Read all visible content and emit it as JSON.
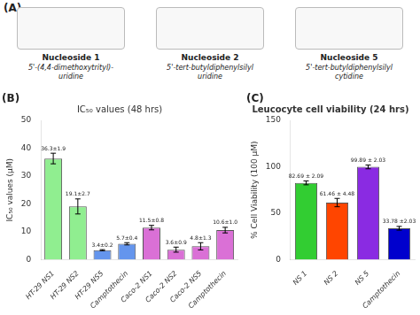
{
  "chart_data": [
    {
      "type": "text",
      "title": "(A)",
      "annotations": [
        "Nucleoside 1",
        "5'-(4,4-dimethoxytrityl)-\nuridine",
        "Nucleoside 2",
        "5'-tert-butyldiphenylsilyl\nuridine",
        "Nucleoside 5",
        "5'-tert-butyldiphenylsilyl\ncytidine"
      ]
    },
    {
      "type": "bar",
      "title": "IC₅₀ values (48 hrs)",
      "annotations": [
        "(B)"
      ],
      "ylabel": "IC₅₀ values (μM)",
      "categories": [
        "HT-29 NS1",
        "HT-29 NS2",
        "HT-29 NS5",
        "Camptothecin",
        "Caco-2 NS1",
        "Caco-2 NS2",
        "Caco-2 NS5",
        "Camptothecin"
      ],
      "values": [
        36.3,
        19.1,
        3.4,
        5.7,
        11.5,
        3.6,
        4.8,
        10.6
      ],
      "errors": [
        1.9,
        2.7,
        0.2,
        0.4,
        0.8,
        0.9,
        1.3,
        1.0
      ],
      "data_labels": true,
      "value_labels": [
        "36.3±1.9",
        "19.1±2.7",
        "3.4±0.2",
        "5.7±0.4",
        "11.5±0.8",
        "3.6±0.9",
        "4.8±1.3",
        "10.6±1.0"
      ],
      "colors": [
        "#90EE90",
        "#90EE90",
        "#6495ED",
        "#6495ED",
        "#DA70D6",
        "#DA70D6",
        "#DA70D6",
        "#DA70D6"
      ],
      "ylim": [
        0,
        50
      ],
      "yticks": [
        0,
        10,
        20,
        30,
        40,
        50
      ],
      "grid": false
    },
    {
      "type": "bar",
      "title": "Leucocyte cell viability (24 hrs)",
      "annotations": [
        "(C)"
      ],
      "ylabel": "% Cell Viability (100 μM)",
      "categories": [
        "NS 1",
        "NS 2",
        "NS 5",
        "Camptothecin"
      ],
      "values": [
        82.69,
        61.46,
        99.89,
        33.78
      ],
      "errors": [
        2.09,
        4.48,
        2.03,
        2.03
      ],
      "data_labels": true,
      "value_labels": [
        "82.69 ± 2.09",
        "61.46 ± 4.48",
        "99.89 ± 2.03",
        "33.78 ±2.03"
      ],
      "colors": [
        "#32CD32",
        "#FF4500",
        "#8A2BE2",
        "#0000CD"
      ],
      "ylim": [
        0,
        150
      ],
      "yticks": [
        0,
        50,
        100,
        150
      ],
      "grid": false
    }
  ]
}
